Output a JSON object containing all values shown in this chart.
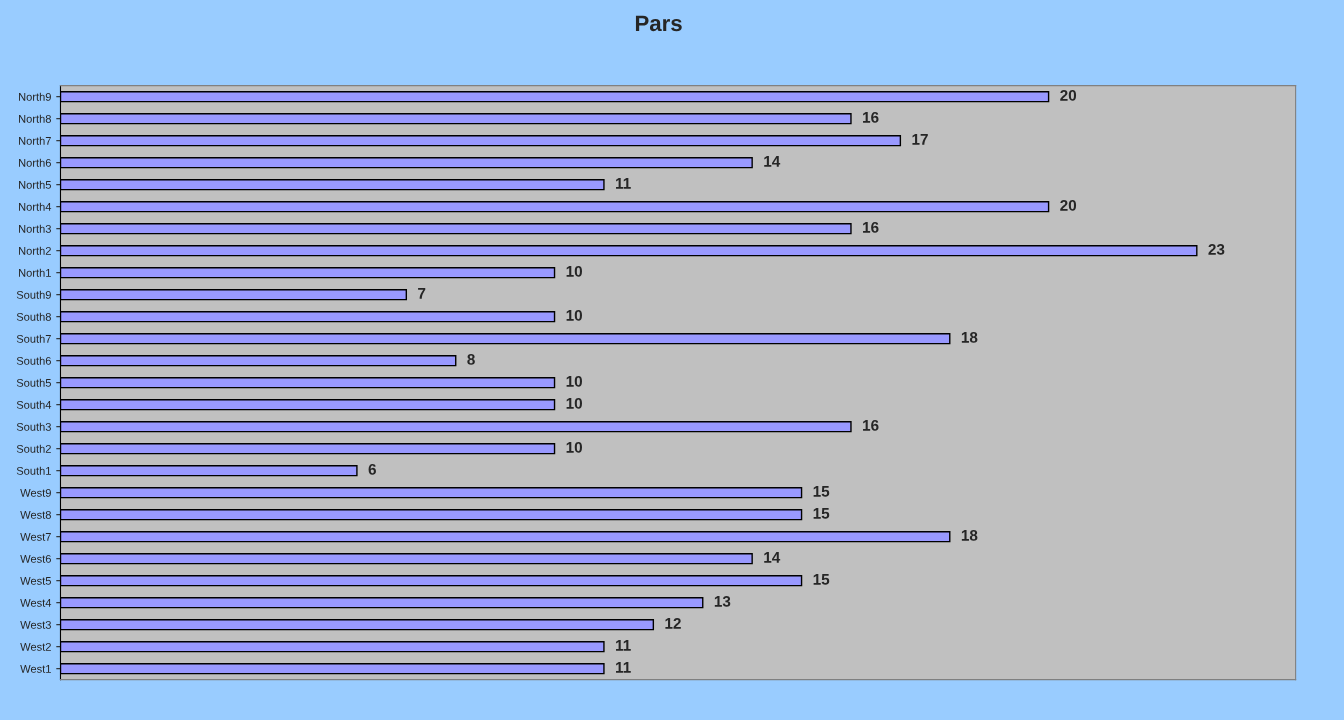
{
  "chart_data": {
    "type": "bar",
    "title": "Pars",
    "orientation": "horizontal",
    "categories": [
      "North9",
      "North8",
      "North7",
      "North6",
      "North5",
      "North4",
      "North3",
      "North2",
      "North1",
      "South9",
      "South8",
      "South7",
      "South6",
      "South5",
      "South4",
      "South3",
      "South2",
      "South1",
      "West9",
      "West8",
      "West7",
      "West6",
      "West5",
      "West4",
      "West3",
      "West2",
      "West1"
    ],
    "values": [
      20,
      16,
      17,
      14,
      11,
      20,
      16,
      23,
      10,
      7,
      10,
      18,
      8,
      10,
      10,
      16,
      10,
      6,
      15,
      15,
      18,
      14,
      15,
      13,
      12,
      11,
      11
    ],
    "color": "#9999ff",
    "xlim": [
      0,
      25
    ],
    "data_labels": true,
    "tick_labels": "y",
    "grid": false,
    "legend": false
  }
}
